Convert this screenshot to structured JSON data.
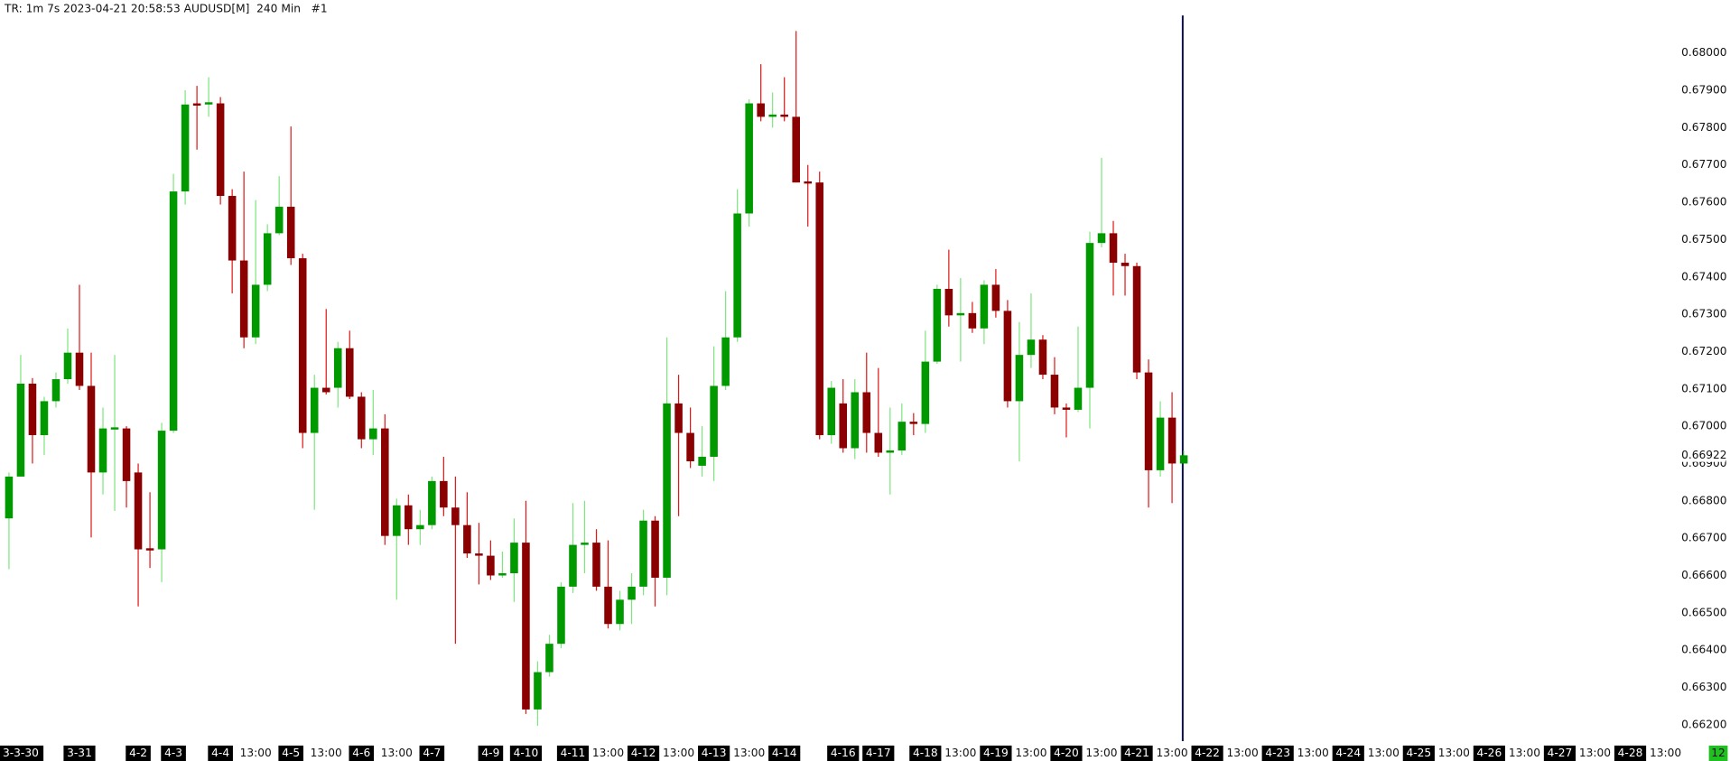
{
  "chart_data": {
    "type": "candlestick",
    "title": "TR: 1m 7s 2023-04-21 20:58:53 AUDUSD[M]  240 Min   #1",
    "categories": [
      null,
      "3-3-30",
      null,
      null,
      null,
      null,
      "3-31",
      null,
      null,
      null,
      null,
      "4-2",
      null,
      null,
      "4-3",
      null,
      null,
      null,
      "4-4",
      null,
      null,
      "13:00",
      null,
      null,
      "4-5",
      null,
      null,
      "13:00",
      null,
      null,
      "4-6",
      null,
      null,
      "13:00",
      null,
      null,
      "4-7",
      null,
      null,
      null,
      null,
      "4-9",
      null,
      null,
      "4-10",
      null,
      null,
      null,
      "4-11",
      null,
      null,
      "13:00",
      null,
      null,
      "4-12",
      null,
      null,
      "13:00",
      null,
      null,
      "4-13",
      null,
      null,
      "13:00",
      null,
      null,
      "4-14",
      null,
      null,
      null,
      null,
      "4-16",
      null,
      null,
      "4-17",
      null,
      null,
      null,
      "4-18",
      null,
      null,
      "13:00",
      null,
      null,
      "4-19",
      null,
      null,
      "13:00",
      null,
      null,
      "4-20",
      null,
      null,
      "13:00",
      null,
      null,
      "4-21",
      null,
      null,
      "13:00",
      null,
      null,
      "4-22",
      null,
      null,
      "13:00",
      null,
      null,
      "4-23",
      null,
      null,
      "13:00",
      null,
      null,
      "4-24",
      null,
      null,
      "13:00",
      null,
      null,
      "4-25",
      null,
      null,
      "13:00",
      null,
      null,
      "4-26",
      null,
      null,
      "13:00",
      null,
      null,
      "4-27",
      null,
      null,
      "13:00",
      null,
      null,
      "4-28",
      null,
      null,
      "13:00"
    ],
    "open": [
      0.66753,
      0.66865,
      0.67114,
      0.66976,
      0.67067,
      0.67126,
      0.67197,
      0.67108,
      0.66876,
      0.66994,
      0.66994,
      0.66876,
      0.6667,
      0.6667,
      0.66988,
      0.67629,
      0.67862,
      0.67862,
      0.67865,
      0.67617,
      0.67444,
      0.67238,
      0.67379,
      0.67517,
      0.67588,
      0.6745,
      0.66982,
      0.67103,
      0.67103,
      0.67209,
      0.67079,
      0.66965,
      0.66994,
      0.66706,
      0.66788,
      0.66724,
      0.66735,
      0.66853,
      0.66782,
      0.66735,
      0.66659,
      0.66653,
      0.666,
      0.66606,
      0.66688,
      0.66241,
      0.66341,
      0.66417,
      0.6657,
      0.66682,
      0.66688,
      0.6657,
      0.6647,
      0.66535,
      0.6657,
      0.66747,
      0.66594,
      0.67061,
      0.66982,
      0.66894,
      0.66918,
      0.67108,
      0.67238,
      0.6757,
      0.67865,
      0.67829,
      0.67835,
      0.67829,
      0.67653,
      0.67653,
      0.66976,
      0.67061,
      0.66941,
      0.67091,
      0.66982,
      0.66929,
      0.66935,
      0.67012,
      0.67006,
      0.67173,
      0.67368,
      0.67297,
      0.67303,
      0.67262,
      0.67379,
      0.67309,
      0.67067,
      0.67191,
      0.67232,
      0.67138,
      0.6705,
      0.67044,
      0.67103,
      0.67491,
      0.67517,
      0.67438,
      0.67429,
      0.67144,
      0.66882,
      0.67023,
      0.669,
      null,
      null,
      null,
      null,
      null,
      null,
      null,
      null,
      null,
      null,
      null,
      null,
      null,
      null,
      null,
      null,
      null,
      null,
      null,
      null,
      null,
      null,
      null,
      null,
      null,
      null,
      null,
      null,
      null,
      null,
      null,
      null,
      null,
      null,
      null,
      null,
      null,
      null,
      null,
      null,
      null
    ],
    "high": [
      0.66876,
      0.67191,
      0.67129,
      0.67079,
      0.67144,
      0.67262,
      0.67379,
      0.67197,
      0.6705,
      0.67191,
      0.67,
      0.669,
      0.66823,
      0.67009,
      0.67676,
      0.679,
      0.67912,
      0.67935,
      0.67882,
      0.67635,
      0.67682,
      0.67606,
      0.67541,
      0.6767,
      0.67803,
      0.67462,
      0.67138,
      0.67314,
      0.67226,
      0.67256,
      0.67091,
      0.67097,
      0.67032,
      0.66806,
      0.66817,
      0.66776,
      0.66865,
      0.66918,
      0.66865,
      0.66823,
      0.66741,
      0.66694,
      0.66664,
      0.66753,
      0.668,
      0.6637,
      0.66441,
      0.66582,
      0.66794,
      0.668,
      0.66724,
      0.66694,
      0.66559,
      0.66606,
      0.66776,
      0.66759,
      0.67238,
      0.67138,
      0.6705,
      0.67,
      0.67214,
      0.67362,
      0.67635,
      0.67876,
      0.6797,
      0.67894,
      0.67935,
      0.68059,
      0.677,
      0.67682,
      0.67121,
      0.67126,
      0.67126,
      0.67197,
      0.67156,
      0.6705,
      0.67061,
      0.67035,
      0.67256,
      0.67379,
      0.67473,
      0.67397,
      0.67333,
      0.67391,
      0.67421,
      0.67338,
      0.67279,
      0.67356,
      0.67244,
      0.67185,
      0.67061,
      0.67267,
      0.67521,
      0.67719,
      0.6755,
      0.67462,
      0.67438,
      0.67179,
      0.67067,
      0.67091,
      0.66935,
      null,
      null,
      null,
      null,
      null,
      null,
      null,
      null,
      null,
      null,
      null,
      null,
      null,
      null,
      null,
      null,
      null,
      null,
      null,
      null,
      null,
      null,
      null,
      null,
      null,
      null,
      null,
      null,
      null,
      null,
      null,
      null,
      null,
      null,
      null,
      null,
      null,
      null,
      null,
      null,
      null
    ],
    "low": [
      0.66617,
      0.66865,
      0.669,
      0.66923,
      0.6705,
      0.67114,
      0.67097,
      0.66702,
      0.66817,
      0.66773,
      0.66782,
      0.66517,
      0.6662,
      0.66582,
      0.66982,
      0.67594,
      0.67741,
      0.67829,
      0.67594,
      0.67356,
      0.67209,
      0.6722,
      0.67362,
      0.67512,
      0.67432,
      0.66941,
      0.66776,
      0.67085,
      0.6705,
      0.67073,
      0.66941,
      0.66923,
      0.66682,
      0.66535,
      0.66682,
      0.66682,
      0.66724,
      0.66759,
      0.66417,
      0.66647,
      0.66576,
      0.66588,
      0.66594,
      0.66529,
      0.66229,
      0.66197,
      0.66329,
      0.66405,
      0.66553,
      0.66606,
      0.66559,
      0.66458,
      0.66453,
      0.6647,
      0.66547,
      0.66517,
      0.66547,
      0.66759,
      0.66888,
      0.66865,
      0.66853,
      0.67097,
      0.67226,
      0.67535,
      0.67817,
      0.678,
      0.67817,
      0.67653,
      0.67535,
      0.66965,
      0.66953,
      0.66929,
      0.66912,
      0.66929,
      0.66918,
      0.66817,
      0.66923,
      0.66976,
      0.66982,
      0.67167,
      0.67267,
      0.67173,
      0.6725,
      0.6722,
      0.67291,
      0.6705,
      0.66906,
      0.67156,
      0.67126,
      0.67032,
      0.6697,
      0.67038,
      0.66994,
      0.67479,
      0.6735,
      0.6735,
      0.67126,
      0.66782,
      0.66865,
      0.66794,
      0.669,
      null,
      null,
      null,
      null,
      null,
      null,
      null,
      null,
      null,
      null,
      null,
      null,
      null,
      null,
      null,
      null,
      null,
      null,
      null,
      null,
      null,
      null,
      null,
      null,
      null,
      null,
      null,
      null,
      null,
      null,
      null,
      null,
      null,
      null,
      null,
      null,
      null,
      null,
      null,
      null,
      null
    ],
    "close": [
      0.66865,
      0.67114,
      0.66976,
      0.67067,
      0.67126,
      0.67197,
      0.67108,
      0.66876,
      0.66994,
      0.66994,
      0.66853,
      0.6667,
      0.66667,
      0.66988,
      0.67629,
      0.67862,
      0.67859,
      0.67865,
      0.67617,
      0.67444,
      0.67238,
      0.67379,
      0.67517,
      0.67588,
      0.6745,
      0.66982,
      0.67103,
      0.67091,
      0.67209,
      0.67079,
      0.66965,
      0.66994,
      0.66706,
      0.66788,
      0.66724,
      0.66735,
      0.66853,
      0.66782,
      0.66735,
      0.66659,
      0.66653,
      0.666,
      0.66606,
      0.66688,
      0.66241,
      0.66341,
      0.66417,
      0.6657,
      0.66682,
      0.66688,
      0.6657,
      0.6647,
      0.66535,
      0.6657,
      0.66747,
      0.66594,
      0.67061,
      0.66982,
      0.66906,
      0.66918,
      0.67108,
      0.67238,
      0.6757,
      0.67865,
      0.67829,
      0.67835,
      0.67829,
      0.67653,
      0.6765,
      0.66976,
      0.67103,
      0.66941,
      0.67091,
      0.66982,
      0.66929,
      0.66935,
      0.67012,
      0.67006,
      0.67173,
      0.67368,
      0.67297,
      0.67303,
      0.67262,
      0.67379,
      0.67309,
      0.67067,
      0.67191,
      0.67232,
      0.67138,
      0.6705,
      0.67044,
      0.67103,
      0.67491,
      0.67517,
      0.67438,
      0.67429,
      0.67144,
      0.66882,
      0.67023,
      0.669,
      0.66922,
      null,
      null,
      null,
      null,
      null,
      null,
      null,
      null,
      null,
      null,
      null,
      null,
      null,
      null,
      null,
      null,
      null,
      null,
      null,
      null,
      null,
      null,
      null,
      null,
      null,
      null,
      null,
      null,
      null,
      null,
      null,
      null,
      null,
      null,
      null,
      null,
      null,
      null,
      null,
      null,
      null
    ],
    "up_color": "#009a00",
    "up_wick_color": "#7ee67e",
    "down_color": "#8b0000",
    "down_wick_color": "#e01818",
    "ylim": [
      0.66162,
      0.68142
    ],
    "yticks": [
      {
        "value": 0.662,
        "label": "0.66200"
      },
      {
        "value": 0.663,
        "label": "0.66300"
      },
      {
        "value": 0.664,
        "label": "0.66400"
      },
      {
        "value": 0.665,
        "label": "0.66500"
      },
      {
        "value": 0.666,
        "label": "0.66600"
      },
      {
        "value": 0.667,
        "label": "0.66700"
      },
      {
        "value": 0.668,
        "label": "0.66800"
      },
      {
        "value": 0.669,
        "label": "0.66900"
      },
      {
        "value": 0.67,
        "label": "0.67000"
      },
      {
        "value": 0.671,
        "label": "0.67100"
      },
      {
        "value": 0.672,
        "label": "0.67200"
      },
      {
        "value": 0.673,
        "label": "0.67300"
      },
      {
        "value": 0.674,
        "label": "0.67400"
      },
      {
        "value": 0.675,
        "label": "0.67500"
      },
      {
        "value": 0.676,
        "label": "0.67600"
      },
      {
        "value": 0.677,
        "label": "0.67700"
      },
      {
        "value": 0.678,
        "label": "0.67800"
      },
      {
        "value": 0.679,
        "label": "0.67900"
      },
      {
        "value": 0.68,
        "label": "0.68000"
      }
    ],
    "last_price": {
      "value": 0.66922,
      "label": "0.66922"
    },
    "bar_countdown": "12"
  }
}
